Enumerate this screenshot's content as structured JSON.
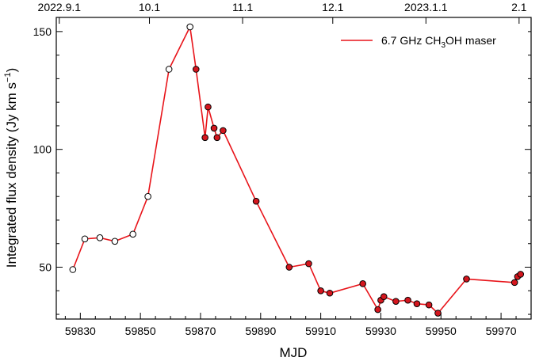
{
  "chart_data": {
    "type": "line",
    "title": "",
    "xlabel": "MJD",
    "ylabel": "Integrated flux density (Jy km s",
    "ylabel_unit_sup": "−1",
    "ylabel_close": ")",
    "xlim": [
      59822,
      59980
    ],
    "ylim": [
      28,
      156
    ],
    "x_ticks": [
      59830,
      59850,
      59870,
      59890,
      59910,
      59930,
      59950,
      59970
    ],
    "x_tick_labels": [
      "59830",
      "59850",
      "59870",
      "59890",
      "59910",
      "59930",
      "59950",
      "59970"
    ],
    "y_ticks": [
      50,
      100,
      150
    ],
    "y_tick_labels": [
      "50",
      "100",
      "150"
    ],
    "top_axis": {
      "positions": [
        59823,
        59853,
        59884,
        59914,
        59945,
        59976
      ],
      "labels": [
        "2022.9.1",
        "10.1",
        "11.1",
        "12.1",
        "2023.1.1",
        "2.1"
      ]
    },
    "legend": {
      "placement": "top-right",
      "label_prefix": "6.7 GHz CH",
      "label_sub": "3",
      "label_suffix": "OH maser",
      "color": "#e8141a"
    },
    "line_color": "#e8141a",
    "series": [
      {
        "name": "6.7 GHz CH3OH maser",
        "x": [
          59827.5,
          59831.5,
          59836.5,
          59841.5,
          59847.5,
          59852.5,
          59859.5,
          59866.5,
          59868.5,
          59871.5,
          59872.5,
          59874.5,
          59875.5,
          59877.5,
          59888.5,
          59899.5,
          59906.0,
          59910.0,
          59913.0,
          59924.0,
          59929.0,
          59930.0,
          59931.0,
          59935.0,
          59939.0,
          59942.0,
          59946.0,
          59949.0,
          59958.5,
          59974.5,
          59975.5,
          59976.5
        ],
        "values": [
          49,
          62,
          62.5,
          61,
          64,
          80,
          134,
          152,
          134,
          105,
          118,
          109,
          105,
          108,
          78,
          50,
          51.5,
          40,
          39,
          43,
          32,
          36,
          37.5,
          35.5,
          36,
          34.5,
          34,
          30.5,
          45,
          43.5,
          46,
          47
        ],
        "open_count": 8,
        "marker_fill_filled": "#d4161e",
        "marker_fill_open": "#ffffff"
      }
    ]
  }
}
